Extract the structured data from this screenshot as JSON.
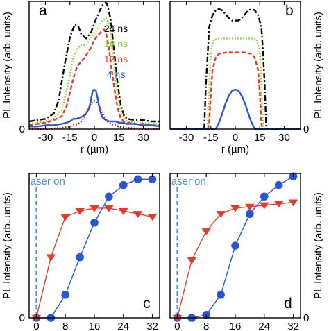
{
  "chart_data": [
    {
      "panel": "a",
      "type": "line",
      "xlabel": "r (µm)",
      "ylabel": "PL Intensity (arb. units)",
      "xlim": [
        -40,
        40
      ],
      "ylim": [
        0,
        1.0
      ],
      "x_ticks": [
        -30,
        -15,
        0,
        15,
        30
      ],
      "x_tick_labels": [
        "-30",
        "-15",
        "0",
        "15",
        "30"
      ],
      "y_ticks": [
        0
      ],
      "y_tick_labels": [
        "0"
      ],
      "legend": {
        "placement": "top-right",
        "entries": [
          "24 ns",
          "16 ns",
          "12 ns",
          "4 ns"
        ]
      },
      "series": [
        {
          "name": "24 ns",
          "color": "#000000",
          "style": "dash-dot",
          "x": [
            -40,
            -35,
            -30,
            -25,
            -22,
            -18,
            -15,
            -12,
            -10,
            -8,
            -5,
            -2,
            0,
            3,
            5,
            7,
            8,
            10,
            12,
            14,
            16,
            18,
            20,
            25,
            30,
            35,
            40
          ],
          "y": [
            0.06,
            0.07,
            0.08,
            0.12,
            0.22,
            0.52,
            0.72,
            0.82,
            0.81,
            0.74,
            0.71,
            0.76,
            0.83,
            0.92,
            0.97,
            0.99,
            0.97,
            0.86,
            0.62,
            0.38,
            0.2,
            0.11,
            0.08,
            0.07,
            0.07,
            0.06,
            0.06
          ]
        },
        {
          "name": "16 ns",
          "color": "#7ed321",
          "style": "dotted",
          "x": [
            -40,
            -35,
            -30,
            -25,
            -20,
            -17,
            -15,
            -13,
            -11,
            -9,
            -7,
            -5,
            -3,
            0,
            3,
            5,
            7,
            8,
            9,
            10,
            12,
            14,
            16,
            18,
            20,
            25,
            30,
            35,
            40
          ],
          "y": [
            0.04,
            0.05,
            0.06,
            0.08,
            0.15,
            0.3,
            0.42,
            0.56,
            0.62,
            0.65,
            0.66,
            0.66,
            0.7,
            0.75,
            0.81,
            0.85,
            0.87,
            0.85,
            0.82,
            0.74,
            0.52,
            0.3,
            0.16,
            0.09,
            0.06,
            0.05,
            0.05,
            0.04,
            0.04
          ]
        },
        {
          "name": "12 ns",
          "color": "#e53a2a",
          "style": "dashed",
          "x": [
            -40,
            -35,
            -30,
            -25,
            -20,
            -17,
            -14,
            -12,
            -10,
            -8,
            -6,
            -4,
            -2,
            0,
            2,
            4,
            5,
            6,
            7,
            8,
            9,
            10,
            12,
            14,
            16,
            18,
            20,
            25,
            30,
            35,
            40
          ],
          "y": [
            0.03,
            0.04,
            0.05,
            0.07,
            0.1,
            0.18,
            0.34,
            0.44,
            0.5,
            0.53,
            0.56,
            0.6,
            0.64,
            0.7,
            0.73,
            0.76,
            0.77,
            0.78,
            0.76,
            0.7,
            0.62,
            0.52,
            0.34,
            0.18,
            0.09,
            0.06,
            0.05,
            0.04,
            0.04,
            0.03,
            0.03
          ]
        },
        {
          "name": "4 ns",
          "color": "#2a55d4",
          "style": "solid",
          "x": [
            -40,
            -35,
            -30,
            -25,
            -20,
            -17,
            -15,
            -13,
            -11,
            -9,
            -7,
            -5,
            -3,
            -2,
            -1,
            0,
            1,
            2,
            3,
            4,
            5,
            7,
            9,
            11,
            13,
            15,
            17,
            20,
            25,
            30,
            35,
            40
          ],
          "y": [
            0.02,
            0.02,
            0.03,
            0.03,
            0.04,
            0.05,
            0.06,
            0.08,
            0.08,
            0.09,
            0.1,
            0.12,
            0.17,
            0.24,
            0.3,
            0.31,
            0.3,
            0.24,
            0.17,
            0.12,
            0.09,
            0.07,
            0.06,
            0.06,
            0.06,
            0.05,
            0.05,
            0.04,
            0.04,
            0.03,
            0.03,
            0.02
          ]
        },
        {
          "name": "",
          "color": "#8b1a10",
          "style": "dotted",
          "x": [
            -40,
            -30,
            -20,
            -15,
            -10,
            -8,
            -6,
            -4,
            -2,
            0,
            2,
            4,
            6,
            8,
            10,
            15,
            20,
            30,
            40
          ],
          "y": [
            0,
            0,
            0.01,
            0.02,
            0.04,
            0.06,
            0.1,
            0.15,
            0.2,
            0.22,
            0.2,
            0.15,
            0.1,
            0.06,
            0.04,
            0.02,
            0.01,
            0,
            0
          ]
        }
      ]
    },
    {
      "panel": "b",
      "type": "line",
      "xlabel": "r (µm)",
      "ylabel": "PL Intensity (arb. units)",
      "xlim": [
        -40,
        40
      ],
      "ylim": [
        0,
        1.0
      ],
      "x_ticks": [
        -30,
        -15,
        0,
        15,
        30
      ],
      "x_tick_labels": [
        "-30",
        "-15",
        "0",
        "15",
        "30"
      ],
      "y_ticks": [
        0
      ],
      "y_tick_labels": [
        "0"
      ],
      "series": [
        {
          "name": "24 ns",
          "color": "#000000",
          "style": "dash-dot",
          "x": [
            -40,
            -20,
            -19,
            -18,
            -16,
            -14,
            -12,
            -10,
            -8,
            -6,
            -4,
            -2,
            0,
            2,
            4,
            6,
            8,
            10,
            12,
            14,
            16,
            17,
            18,
            19,
            20,
            40
          ],
          "y": [
            0,
            0,
            0.02,
            0.35,
            0.8,
            0.89,
            0.93,
            0.94,
            0.93,
            0.9,
            0.87,
            0.85,
            0.85,
            0.85,
            0.87,
            0.9,
            0.93,
            0.94,
            0.93,
            0.89,
            0.8,
            0.6,
            0.35,
            0.02,
            0,
            0
          ]
        },
        {
          "name": "16 ns",
          "color": "#7ed321",
          "style": "dotted",
          "x": [
            -40,
            -18,
            -17,
            -16,
            -15,
            -13,
            -10,
            -5,
            0,
            5,
            10,
            13,
            15,
            16,
            17,
            18,
            40
          ],
          "y": [
            0,
            0,
            0.02,
            0.3,
            0.62,
            0.7,
            0.71,
            0.71,
            0.71,
            0.71,
            0.71,
            0.7,
            0.62,
            0.3,
            0.02,
            0,
            0
          ]
        },
        {
          "name": "12 ns",
          "color": "#e53a2a",
          "style": "dashed",
          "x": [
            -40,
            -17,
            -16,
            -15,
            -14,
            -12,
            -10,
            -5,
            0,
            5,
            10,
            12,
            14,
            15,
            16,
            17,
            40
          ],
          "y": [
            0,
            0,
            0.04,
            0.28,
            0.46,
            0.56,
            0.59,
            0.6,
            0.6,
            0.6,
            0.59,
            0.56,
            0.46,
            0.28,
            0.04,
            0,
            0
          ]
        },
        {
          "name": "4 ns",
          "color": "#2a55d4",
          "style": "solid",
          "x": [
            -40,
            -12,
            -10,
            -8,
            -6,
            -4,
            -2,
            0,
            2,
            4,
            6,
            8,
            10,
            12,
            40
          ],
          "y": [
            0,
            0,
            0.05,
            0.12,
            0.2,
            0.26,
            0.3,
            0.31,
            0.3,
            0.26,
            0.2,
            0.12,
            0.05,
            0,
            0
          ]
        }
      ]
    },
    {
      "panel": "c",
      "type": "line",
      "xlabel": "t (ns)",
      "ylabel": "PL Intensity (arb. units)",
      "xlim": [
        -2,
        34
      ],
      "ylim": [
        0,
        1.0
      ],
      "x_ticks": [
        0,
        8,
        16,
        24,
        32
      ],
      "x_tick_labels": [
        "0",
        "8",
        "16",
        "24",
        "32"
      ],
      "y_ticks": [
        0
      ],
      "y_tick_labels": [
        "0"
      ],
      "annotation": {
        "text": "laser on",
        "x": 0,
        "color": "#4a8fd9"
      },
      "series": [
        {
          "name": "",
          "color": "#2a55d4",
          "marker": "circle",
          "x": [
            0,
            4,
            8,
            12,
            16,
            20,
            24,
            28,
            32
          ],
          "y": [
            0,
            0,
            0.16,
            0.42,
            0.66,
            0.84,
            0.92,
            0.96,
            0.96
          ]
        },
        {
          "name": "",
          "color": "#e53a2a",
          "marker": "triangle-down",
          "x": [
            0,
            4,
            8,
            12,
            16,
            20,
            24,
            28,
            32
          ],
          "y": [
            0,
            0.42,
            0.7,
            0.74,
            0.76,
            0.76,
            0.74,
            0.72,
            0.7
          ]
        }
      ]
    },
    {
      "panel": "d",
      "type": "line",
      "xlabel": "t (ns)",
      "ylabel": "PL Intensity (arb. units)",
      "xlim": [
        -2,
        34
      ],
      "ylim": [
        0,
        1.0
      ],
      "x_ticks": [
        0,
        8,
        16,
        24,
        32
      ],
      "x_tick_labels": [
        "0",
        "8",
        "16",
        "24",
        "32"
      ],
      "y_ticks": [
        0
      ],
      "y_tick_labels": [
        "0"
      ],
      "annotation": {
        "text": "laser on",
        "x": 0,
        "color": "#4a8fd9"
      },
      "series": [
        {
          "name": "",
          "color": "#2a55d4",
          "marker": "circle",
          "x": [
            0,
            4,
            8,
            12,
            16,
            20,
            24,
            28,
            32
          ],
          "y": [
            0,
            0,
            0.02,
            0.16,
            0.5,
            0.72,
            0.84,
            0.92,
            0.98
          ]
        },
        {
          "name": "",
          "color": "#e53a2a",
          "marker": "triangle-down",
          "x": [
            0,
            4,
            8,
            12,
            16,
            20,
            24,
            28,
            32
          ],
          "y": [
            0,
            0.4,
            0.6,
            0.72,
            0.76,
            0.77,
            0.78,
            0.79,
            0.8
          ]
        }
      ]
    }
  ]
}
